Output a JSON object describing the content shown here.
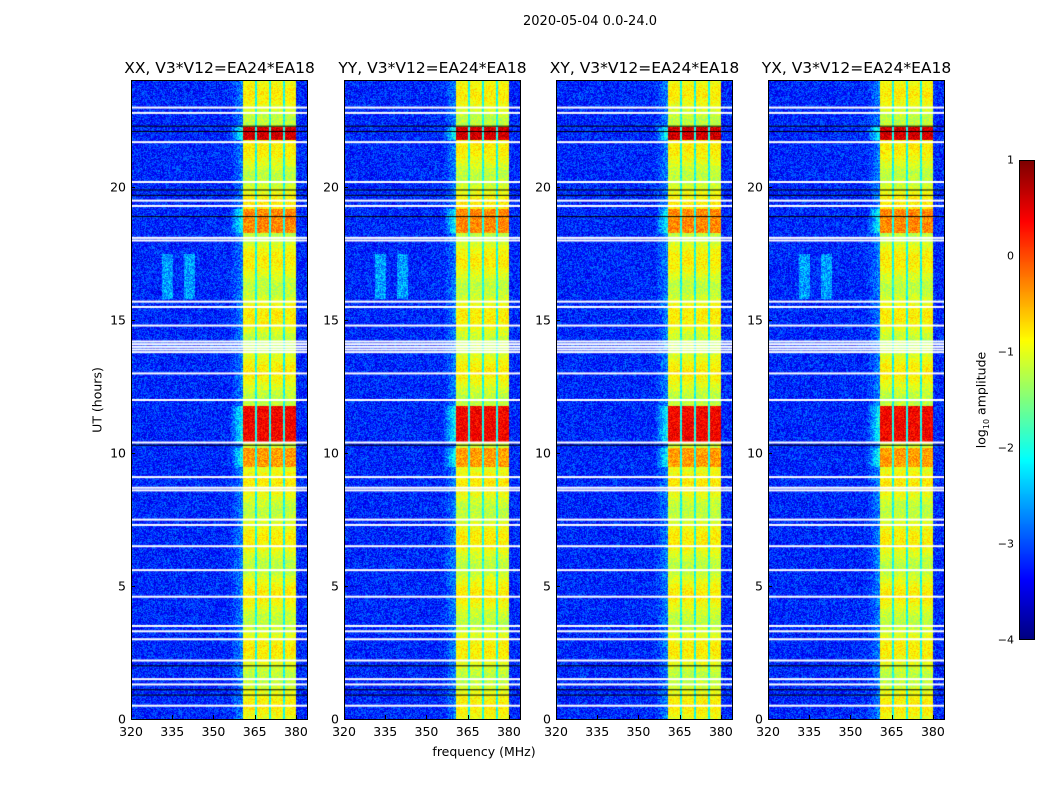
{
  "chart_data": {
    "type": "heatmap",
    "title": "2020-05-04 0.0-24.0",
    "xlabel": "frequency (MHz)",
    "ylabel": "UT (hours)",
    "xlim": [
      320,
      384.4
    ],
    "ylim": [
      0,
      24
    ],
    "xticks": [
      "320",
      "335",
      "350",
      "365",
      "380"
    ],
    "xtick_values": [
      320,
      335,
      350,
      365,
      380
    ],
    "yticks": [
      "0",
      "5",
      "10",
      "15",
      "20"
    ],
    "ytick_values": [
      0,
      5,
      10,
      15,
      20
    ],
    "panels": [
      {
        "title": "XX, V3*V12=EA24*EA18",
        "seed": 1
      },
      {
        "title": "YY, V3*V12=EA24*EA18",
        "seed": 2
      },
      {
        "title": "XY, V3*V12=EA24*EA18",
        "seed": 3
      },
      {
        "title": "YX, V3*V12=EA24*EA18",
        "seed": 4
      }
    ],
    "colorbar": {
      "label": "log10 amplitude",
      "label_main": "log",
      "label_sub": "10",
      "label_rest": " amplitude",
      "colormap": "jet",
      "vmin": -4,
      "vmax": 1,
      "ticks": [
        "1",
        "0",
        "−1",
        "−2",
        "−3",
        "−4"
      ],
      "tick_values": [
        1,
        0,
        -1,
        -2,
        -3,
        -4
      ]
    },
    "rfi_band_mhz": [
      360.7,
      380.0
    ],
    "band_gap_lines_mhz": [
      365.5,
      370.6,
      375.7
    ],
    "background_log_amplitude": -3.2,
    "band_log_amplitude": -1.0,
    "strong_rfi_periods_hours": [
      [
        21.8,
        22.3,
        0.6
      ],
      [
        10.4,
        11.8,
        0.4
      ],
      [
        18.3,
        19.2,
        -0.3
      ],
      [
        9.5,
        10.2,
        -0.4
      ]
    ],
    "flagged_rows_white_hours": [
      23.0,
      22.8,
      21.7,
      20.2,
      19.5,
      19.3,
      18.1,
      18.0,
      15.7,
      15.5,
      14.8,
      14.2,
      14.1,
      14.0,
      13.9,
      13.8,
      13.0,
      12.0,
      10.4,
      9.1,
      8.7,
      8.6,
      7.5,
      7.3,
      6.5,
      5.6,
      4.6,
      3.5,
      3.3,
      3.0,
      2.2,
      1.5,
      1.3,
      0.5
    ],
    "flagged_rows_black_hours": [
      22.3,
      22.1,
      19.9,
      19.7,
      18.9,
      10.3,
      2.0,
      1.1,
      0.9
    ]
  }
}
